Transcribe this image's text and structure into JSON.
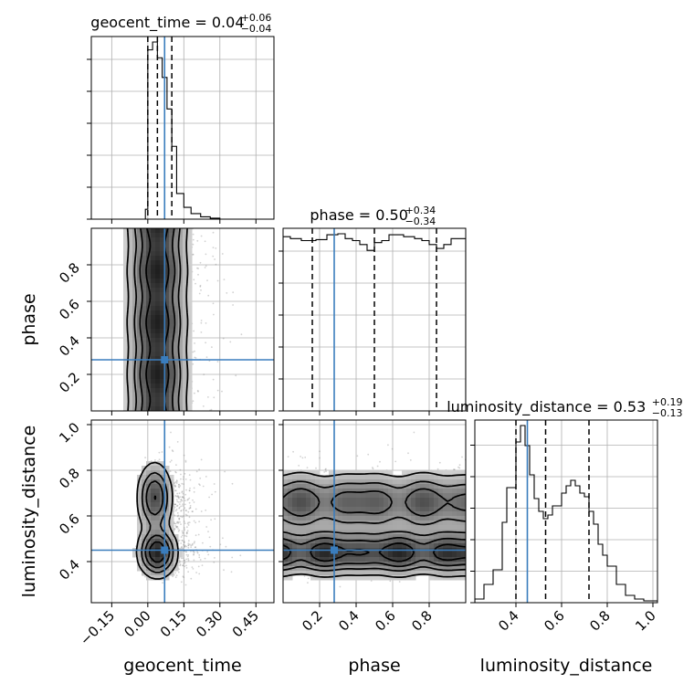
{
  "chart_data": {
    "type": "corner",
    "parameters": [
      "geocent_time",
      "phase",
      "luminosity_distance"
    ],
    "truths": {
      "geocent_time": 0.07,
      "phase": 0.28,
      "luminosity_distance": 0.45
    },
    "titles": {
      "geocent_time": {
        "text": "geocent_time = 0.04",
        "plus": "+0.06",
        "minus": "−0.04"
      },
      "phase": {
        "text": "phase = 0.50",
        "plus": "+0.34",
        "minus": "−0.34"
      },
      "luminosity_distance": {
        "text": "luminosity_distance = 0.53",
        "plus": "+0.19",
        "minus": "−0.13"
      }
    },
    "xlabels": [
      "geocent_time",
      "phase",
      "luminosity_distance"
    ],
    "ylabels": [
      "phase",
      "luminosity_distance"
    ],
    "ranges": {
      "geocent_time": [
        -0.235,
        0.525
      ],
      "phase": [
        0.0,
        1.0
      ],
      "luminosity_distance": [
        0.22,
        1.02
      ]
    },
    "ticks": {
      "geocent_time": [
        "−0.15",
        "0.00",
        "0.15",
        "0.30",
        "0.45"
      ],
      "geocent_time_values": [
        -0.15,
        0.0,
        0.15,
        0.3,
        0.45
      ],
      "phase": [
        "0.2",
        "0.4",
        "0.6",
        "0.8"
      ],
      "phase_values": [
        0.2,
        0.4,
        0.6,
        0.8
      ],
      "luminosity_distance_x": [
        "0.4",
        "0.6",
        "0.8",
        "1.0"
      ],
      "luminosity_distance_y": [
        "0.4",
        "0.6",
        "0.8",
        "1.0"
      ],
      "luminosity_distance_values": [
        0.4,
        0.6,
        0.8,
        1.0
      ]
    },
    "quantiles": {
      "geocent_time": [
        0.0,
        0.04,
        0.1
      ],
      "phase": [
        0.16,
        0.5,
        0.84
      ],
      "luminosity_distance": [
        0.4,
        0.53,
        0.72
      ]
    },
    "histograms": {
      "geocent_time": {
        "edges": [
          -0.01,
          0.0,
          0.02,
          0.04,
          0.06,
          0.08,
          0.1,
          0.12,
          0.15,
          0.18,
          0.22,
          0.26,
          0.3,
          0.34,
          0.38
        ],
        "heights": [
          0.05,
          0.86,
          0.9,
          0.82,
          0.72,
          0.56,
          0.37,
          0.13,
          0.06,
          0.028,
          0.012,
          0.005,
          0.0,
          0.0
        ]
      },
      "phase": {
        "edges": [
          0.0,
          0.04,
          0.1,
          0.18,
          0.24,
          0.3,
          0.34,
          0.38,
          0.42,
          0.46,
          0.5,
          0.54,
          0.58,
          0.6,
          0.66,
          0.72,
          0.76,
          0.8,
          0.84,
          0.88,
          0.92,
          1.0
        ],
        "heights": [
          0.89,
          0.88,
          0.87,
          0.875,
          0.9,
          0.905,
          0.88,
          0.87,
          0.85,
          0.82,
          0.86,
          0.87,
          0.9,
          0.9,
          0.89,
          0.88,
          0.87,
          0.85,
          0.83,
          0.85,
          0.88
        ]
      },
      "luminosity_distance": {
        "edges": [
          0.22,
          0.26,
          0.3,
          0.34,
          0.36,
          0.4,
          0.42,
          0.44,
          0.46,
          0.48,
          0.5,
          0.52,
          0.54,
          0.56,
          0.6,
          0.62,
          0.64,
          0.66,
          0.68,
          0.7,
          0.72,
          0.74,
          0.76,
          0.78,
          0.8,
          0.84,
          0.88,
          0.92,
          0.96,
          1.02
        ],
        "heights": [
          0.02,
          0.1,
          0.18,
          0.44,
          0.63,
          0.88,
          0.97,
          0.86,
          0.7,
          0.57,
          0.5,
          0.46,
          0.48,
          0.53,
          0.6,
          0.64,
          0.67,
          0.64,
          0.6,
          0.58,
          0.5,
          0.43,
          0.32,
          0.26,
          0.2,
          0.1,
          0.04,
          0.02,
          0.01
        ]
      }
    },
    "contour_levels": [
      0.12,
      0.3,
      0.5,
      0.75
    ]
  }
}
